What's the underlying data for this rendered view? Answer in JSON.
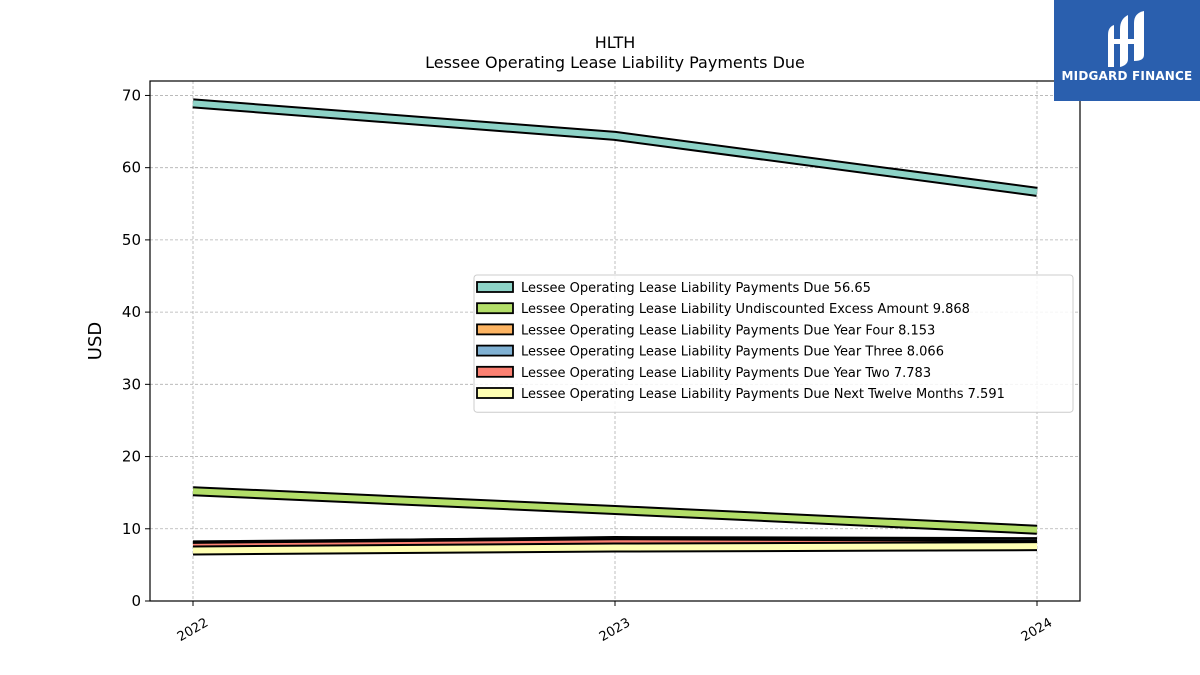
{
  "chart_data": {
    "type": "line",
    "title": "HLTH",
    "subtitle": "Lessee Operating Lease Liability Payments Due",
    "xlabel": "",
    "ylabel": "USD",
    "categories": [
      "2022",
      "2023",
      "2024"
    ],
    "ylim": [
      0,
      72
    ],
    "yticks": [
      0,
      10,
      20,
      30,
      40,
      50,
      60,
      70
    ],
    "grid": true,
    "legend_position": "center-right",
    "series": [
      {
        "name": "Lessee Operating Lease Liability Payments Due",
        "legend_label": "Lessee Operating Lease Liability Payments Due  56.65",
        "values": [
          68.9,
          64.4,
          56.65
        ],
        "color": "#8dd3c7"
      },
      {
        "name": "Lessee Operating Lease Liability Undiscounted Excess Amount",
        "legend_label": "Lessee Operating Lease Liability Undiscounted Excess Amount  9.868",
        "values": [
          15.2,
          12.6,
          9.868
        ],
        "color": "#b3de69"
      },
      {
        "name": "Lessee Operating Lease Liability Payments Due Year Four",
        "legend_label": "Lessee Operating Lease Liability Payments Due Year Four  8.153",
        "values": [
          7.6,
          8.3,
          8.153
        ],
        "color": "#fdb462"
      },
      {
        "name": "Lessee Operating Lease Liability Payments Due Year Three",
        "legend_label": "Lessee Operating Lease Liability Payments Due Year Three  8.066",
        "values": [
          7.7,
          8.2,
          8.066
        ],
        "color": "#80b1d3"
      },
      {
        "name": "Lessee Operating Lease Liability Payments Due Year Two",
        "legend_label": "Lessee Operating Lease Liability Payments Due Year Two  7.783",
        "values": [
          7.5,
          8.0,
          7.783
        ],
        "color": "#fb8072"
      },
      {
        "name": "Lessee Operating Lease Liability Payments Due Next Twelve Months",
        "legend_label": "Lessee Operating Lease Liability Payments Due Next Twelve Months  7.591",
        "values": [
          7.0,
          7.4,
          7.591
        ],
        "color": "#ffffb3"
      }
    ]
  },
  "logo": {
    "text": "MIDGARD FINANCE",
    "color": "#2a5fae"
  }
}
